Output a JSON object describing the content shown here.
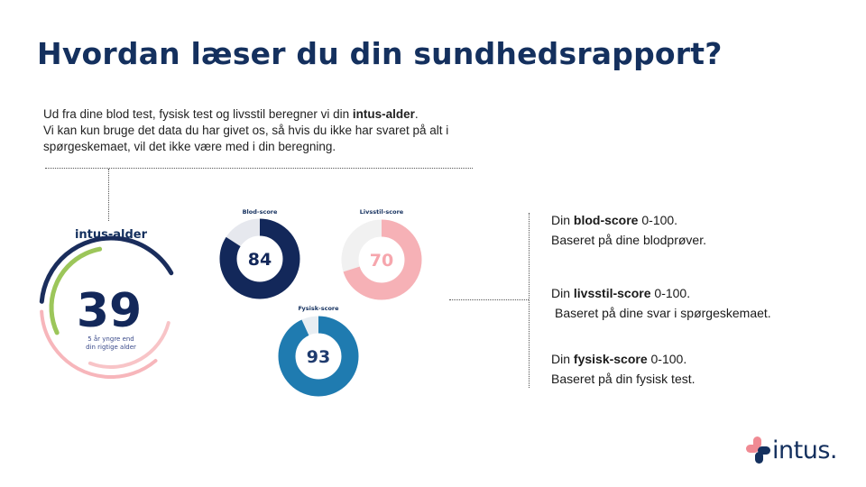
{
  "title": "Hvordan læser du din sundhedsrapport?",
  "intro": {
    "prefix": "Ud fra dine blod test, fysisk test og livsstil beregner vi din ",
    "bold": "intus-alder",
    "suffix": ".",
    "line2": "Vi kan kun bruge det data du har givet os, så hvis du ikke har svaret på alt i spørgeskemaet, vil det ikke være med i din beregning."
  },
  "age_gauge": {
    "label": "intus-alder",
    "value": "39",
    "subtitle_line1": "5 år yngre end",
    "subtitle_line2": "din rigtige alder"
  },
  "scores": [
    {
      "key": "blod",
      "title": "Blod-score",
      "value": 84,
      "color": "#13285a",
      "track": "#e6e8ee"
    },
    {
      "key": "livsstil",
      "title": "Livsstil-score",
      "value": 70,
      "color": "#f6b1b6",
      "track": "#f1f1f1"
    },
    {
      "key": "fysisk",
      "title": "Fysisk-score",
      "value": 93,
      "color": "#1f7bb0",
      "track": "#e8eef3"
    }
  ],
  "explanations": [
    {
      "prefix": "Din ",
      "bold": "blod-score",
      "suffix": " 0-100.",
      "line2": "Baseret på dine blodprøver."
    },
    {
      "prefix": "Din ",
      "bold": "livsstil-score",
      "suffix": " 0-100.",
      "line2": "Baseret på dine svar i spørgeskemaet."
    },
    {
      "prefix": "Din ",
      "bold": "fysisk-score",
      "suffix": " 0-100.",
      "line2": "Baseret på din fysisk test."
    }
  ],
  "logo": {
    "text": "intus.",
    "colors": {
      "pink": "#f08a93",
      "navy": "#14305e"
    }
  }
}
